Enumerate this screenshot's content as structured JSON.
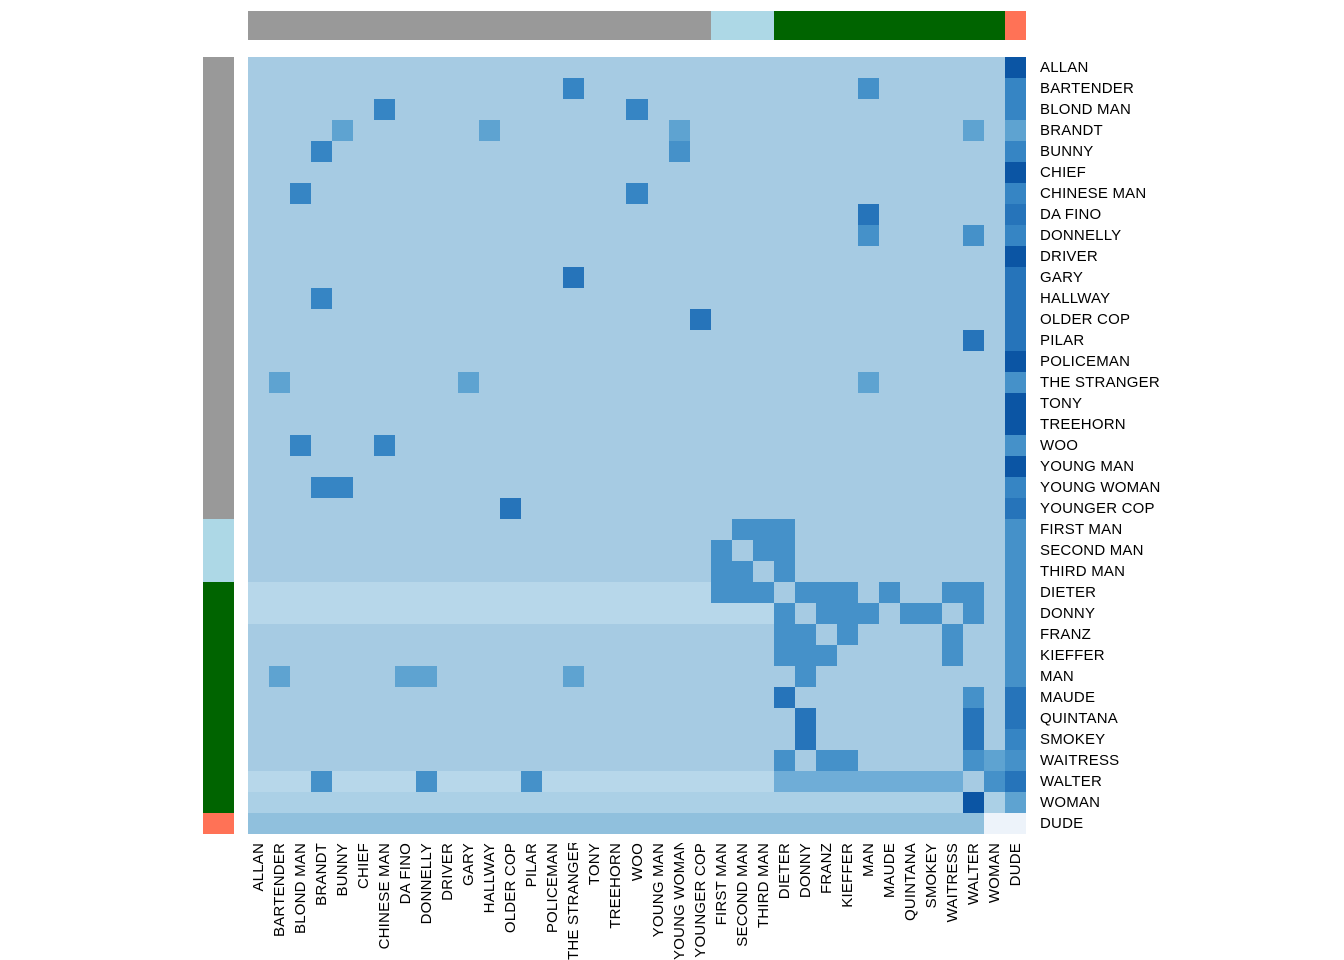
{
  "chart_data": {
    "type": "heatmap",
    "title": "",
    "characters": [
      "ALLAN",
      "BARTENDER",
      "BLOND MAN",
      "BRANDT",
      "BUNNY",
      "CHIEF",
      "CHINESE MAN",
      "DA FINO",
      "DONNELLY",
      "DRIVER",
      "GARY",
      "HALLWAY",
      "OLDER COP",
      "PILAR",
      "POLICEMAN",
      "THE STRANGER",
      "TONY",
      "TREEHORN",
      "WOO",
      "YOUNG MAN",
      "YOUNG WOMAN",
      "YOUNGER COP",
      "FIRST MAN",
      "SECOND MAN",
      "THIRD MAN",
      "DIETER",
      "DONNY",
      "FRANZ",
      "KIEFFER",
      "MAN",
      "MAUDE",
      "QUINTANA",
      "SMOKEY",
      "WAITRESS",
      "WALTER",
      "WOMAN",
      "DUDE"
    ],
    "matrix": [
      "....................................5",
      "...............3.............2......3",
      "......3...........3.................3",
      "....1......1........1.............1.1",
      "...3................2...............3",
      "....................................5",
      "..3...............3.................3",
      ".............................4......4",
      ".............................2....2.3",
      "....................................5",
      "...............4....................4",
      "...3................................4",
      ".....................4..............4",
      "..................................4.4",
      "....................................5",
      ".1........1..................1......2",
      "....................................5",
      "....................................5",
      "..3...3.............................2",
      "....................................5",
      "...33...............................3",
      "............4.......................4",
      ".......................222..........2",
      "......................2.22..........2",
      "......................22.2..........2",
      "tttttttttttttttttttttt222.222.2..22.2",
      "ttttttttttttttttttttttttt2.222.22.2.2",
      ".........................22.2....2..2",
      ".........................222.....2..2",
      ".1.....11......1..........2.........2",
      ".........................4........2.4",
      "..........................4.......4.4",
      "..........................4.......4.3",
      ".........................2.22.....212",
      "ttt2tttt2tttt2tttttttttttWWWWWWWWW.24",
      "wwwwwwwwwwwwwwwwwwwwwwwwwwwwwwwwww5w1",
      "bbbbbbbbbbbbbbbbbbbbbbbbbbbbbbbbbbb00"
    ],
    "level_colors": {
      ".": "#a6cbe3",
      "t": "#b7d7ea",
      "w": "#abd0e6",
      "b": "#90c0dd",
      "W": "#6fadd7",
      "1": "#5ea3d1",
      "2": "#4591c9",
      "3": "#3685c4",
      "4": "#2674ba",
      "5": "#0b55a4",
      "0": "#edf3fa"
    },
    "level_meaning": {
      ".": "no co-occurrence (background)",
      "t": "row tint light",
      "w": "row tint woman",
      "b": "dude row band",
      "W": "walter row band",
      "1": "low",
      "2": "medium",
      "3": "medium-high",
      "4": "high",
      "5": "very high",
      "0": "near-white minimum"
    },
    "groups": [
      {
        "name": "gray-group",
        "color": "#999999",
        "start": 0,
        "end": 21
      },
      {
        "name": "lightblue-group",
        "color": "#add8e6",
        "start": 22,
        "end": 24
      },
      {
        "name": "green-group",
        "color": "#006400",
        "start": 25,
        "end": 35
      },
      {
        "name": "tomato-group",
        "color": "#ff7256",
        "start": 36,
        "end": 36
      }
    ],
    "legend_position": "none",
    "grid": "off"
  }
}
